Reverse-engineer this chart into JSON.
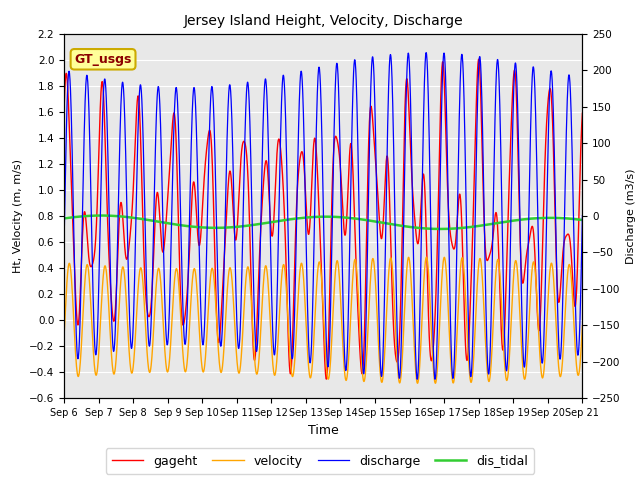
{
  "title": "Jersey Island Height, Velocity, Discharge",
  "xlabel": "Time",
  "ylabel_left": "Ht, Velocity (m, m/s)",
  "ylabel_right": "Discharge (m3/s)",
  "ylim_left": [
    -0.6,
    2.2
  ],
  "ylim_right": [
    -250,
    250
  ],
  "yticks_left": [
    -0.6,
    -0.4,
    -0.2,
    0.0,
    0.2,
    0.4,
    0.6,
    0.8,
    1.0,
    1.2,
    1.4,
    1.6,
    1.8,
    2.0,
    2.2
  ],
  "yticks_right": [
    -250,
    -200,
    -150,
    -100,
    -50,
    0,
    50,
    100,
    150,
    200,
    250
  ],
  "legend_entries": [
    "gageht",
    "velocity",
    "discharge",
    "dis_tidal"
  ],
  "legend_colors": [
    "red",
    "orange",
    "blue",
    "limegreen"
  ],
  "annotation_text": "GT_usgs",
  "annotation_bg": "#FFFF99",
  "annotation_border": "#CCAA00",
  "plot_bg": "#E8E8E8",
  "n_days": 15,
  "day_start": 6,
  "tidal_period_hours": 12.4,
  "semidiurnal_period_hours": 6.2
}
